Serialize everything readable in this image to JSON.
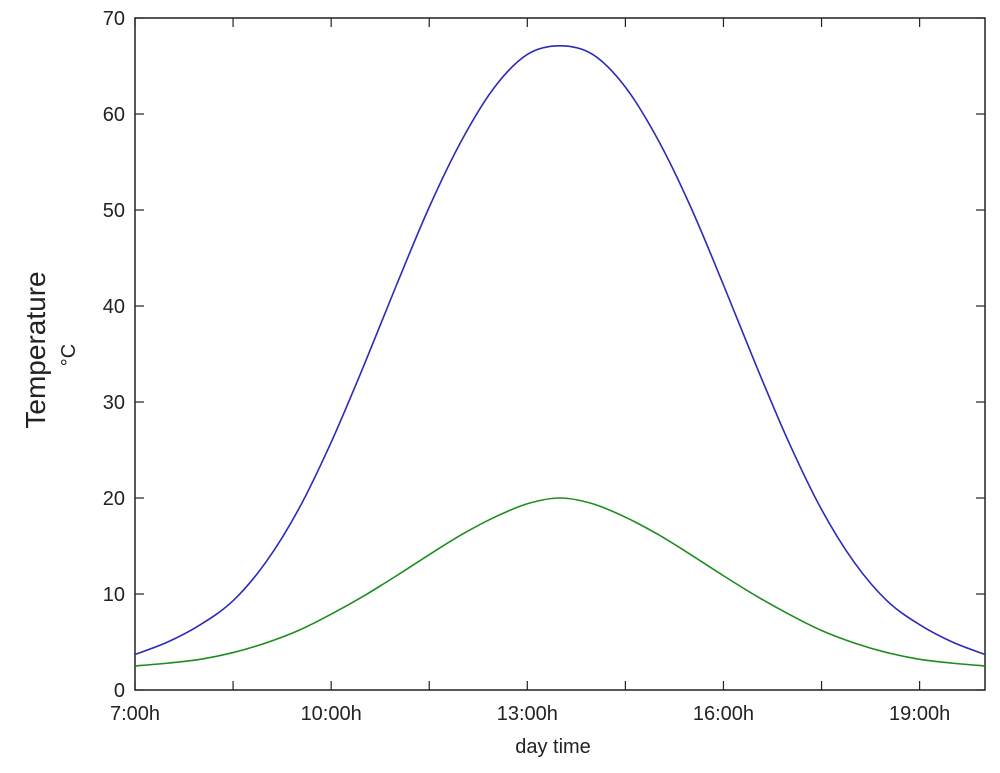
{
  "chart_data": {
    "type": "line",
    "title": "",
    "xlabel": "day time",
    "ylabel": "Temperature",
    "yunit": "°C",
    "xlim": [
      7,
      20
    ],
    "ylim": [
      0,
      70
    ],
    "grid": false,
    "legend": "none",
    "x_ticks": [
      {
        "value": 7,
        "label": "7:00h"
      },
      {
        "value": 10,
        "label": "10:00h"
      },
      {
        "value": 13,
        "label": "13:00h"
      },
      {
        "value": 16,
        "label": "16:00h"
      },
      {
        "value": 19,
        "label": "19:00h"
      }
    ],
    "x_minor_ticks": [
      8.5,
      11.5,
      14.5,
      17.5
    ],
    "y_ticks": [
      0,
      10,
      20,
      30,
      40,
      50,
      60,
      70
    ],
    "x": [
      7,
      7.5,
      8,
      8.5,
      9,
      9.5,
      10,
      10.5,
      11,
      11.5,
      12,
      12.5,
      13,
      13.5,
      14,
      14.5,
      15,
      15.5,
      16,
      16.5,
      17,
      17.5,
      18,
      18.5,
      19,
      19.5,
      20
    ],
    "series": [
      {
        "color": "#2b2bb8",
        "values": [
          3.7,
          5.0,
          6.8,
          9.3,
          13.3,
          18.8,
          25.8,
          33.8,
          42.2,
          50.3,
          57.3,
          62.8,
          66.2,
          67.1,
          66.2,
          62.8,
          57.3,
          50.3,
          42.2,
          33.8,
          25.8,
          18.8,
          13.3,
          9.3,
          6.8,
          5.0,
          3.7
        ]
      },
      {
        "color": "#1e8c1e",
        "values": [
          2.5,
          2.8,
          3.2,
          3.9,
          4.9,
          6.2,
          7.9,
          9.8,
          11.9,
          14.1,
          16.2,
          18.0,
          19.4,
          20.0,
          19.4,
          18.0,
          16.2,
          14.1,
          11.9,
          9.8,
          7.9,
          6.2,
          4.9,
          3.9,
          3.2,
          2.8,
          2.5
        ]
      }
    ]
  }
}
